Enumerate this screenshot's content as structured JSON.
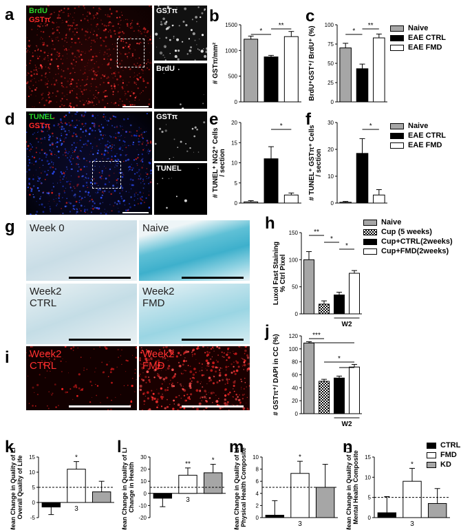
{
  "panels": {
    "a": {
      "letter": "a",
      "stain1": "BrdU",
      "stain2": "GSTπ",
      "inset_top": "GSTπ",
      "inset_bottom": "BrdU"
    },
    "b": {
      "letter": "b"
    },
    "c": {
      "letter": "c"
    },
    "d": {
      "letter": "d",
      "stain1": "TUNEL",
      "stain2": "GSTπ",
      "inset_top": "GSTπ",
      "inset_bottom": "TUNEL"
    },
    "e": {
      "letter": "e"
    },
    "f": {
      "letter": "f"
    },
    "g": {
      "letter": "g",
      "labels": [
        "Week 0",
        "Naive",
        "Week2",
        "CTRL",
        "Week2",
        "FMD"
      ]
    },
    "h": {
      "letter": "h"
    },
    "i": {
      "letter": "i",
      "labels": [
        "Week2",
        "CTRL",
        "Week2",
        "FMD"
      ]
    },
    "j": {
      "letter": "j"
    },
    "k": {
      "letter": "k"
    },
    "l": {
      "letter": "l"
    },
    "m": {
      "letter": "m"
    },
    "n": {
      "letter": "n"
    }
  },
  "legends": {
    "abc": [
      "Naive",
      "EAE CTRL",
      "EAE FMD"
    ],
    "ef": [
      "Naive",
      "EAE CTRL",
      "EAE FMD"
    ],
    "hj": [
      "Naive",
      "Cup (5 weeks)",
      "Cup+CTRL(2weeks)",
      "Cup+FMD(2weeks)"
    ],
    "kn": [
      "CTRL",
      "FMD",
      "KD"
    ]
  },
  "colors": {
    "gray": "#a6a6a6",
    "black": "#000000",
    "white": "#ffffff",
    "red_stain": "#ff2a2a",
    "green_stain": "#29d629",
    "blue_stain": "#2b4cff",
    "lfb_blue": "#57b6cf"
  },
  "chart_data": [
    {
      "id": "b",
      "type": "bar",
      "ylabel": "# GSTπ/mm²",
      "ylim": [
        0,
        1500
      ],
      "yticks": [
        "0",
        "500",
        "1000",
        "1500"
      ],
      "series": [
        {
          "name": "Naive",
          "value": 1220,
          "err": 60
        },
        {
          "name": "EAE CTRL",
          "value": 875,
          "err": 30
        },
        {
          "name": "EAE FMD",
          "value": 1270,
          "err": 100
        }
      ],
      "annotations": [
        "*",
        "**"
      ]
    },
    {
      "id": "c",
      "type": "bar",
      "ylabel": "BrdU⁺GST⁺/ BrdU⁺ (%)",
      "ylim": [
        0,
        100
      ],
      "yticks": [
        "0",
        "25",
        "50",
        "75",
        "100"
      ],
      "series": [
        {
          "name": "Naive",
          "value": 70,
          "err": 6
        },
        {
          "name": "EAE CTRL",
          "value": 43,
          "err": 6
        },
        {
          "name": "EAE FMD",
          "value": 83,
          "err": 5
        }
      ],
      "annotations": [
        "*",
        "**"
      ]
    },
    {
      "id": "e",
      "type": "bar",
      "ylabel": "# TUNEL⁺ NG2⁺ Cells / section",
      "ylim": [
        0,
        20
      ],
      "yticks": [
        "0",
        "5",
        "10",
        "15",
        "20"
      ],
      "series": [
        {
          "name": "Naive",
          "value": 0.3,
          "err": 0.3
        },
        {
          "name": "EAE CTRL",
          "value": 11,
          "err": 3
        },
        {
          "name": "EAE FMD",
          "value": 2,
          "err": 0.5
        }
      ],
      "annotations": [
        "*"
      ]
    },
    {
      "id": "f",
      "type": "bar",
      "ylabel": "# TUNEL⁺ GSTπ⁺ Cells / section",
      "ylim": [
        0,
        30
      ],
      "yticks": [
        "0",
        "10",
        "20",
        "30"
      ],
      "series": [
        {
          "name": "Naive",
          "value": 0.3,
          "err": 0.3
        },
        {
          "name": "EAE CTRL",
          "value": 18.5,
          "err": 5.5
        },
        {
          "name": "EAE FMD",
          "value": 3,
          "err": 2
        }
      ],
      "annotations": [
        "*"
      ]
    },
    {
      "id": "h",
      "type": "bar",
      "ylabel": "Luxol Fast Staining % Ctrl Pixel",
      "ylim": [
        0,
        150
      ],
      "yticks": [
        "0",
        "50",
        "100",
        "150"
      ],
      "series": [
        {
          "name": "Naive",
          "value": 100,
          "err": 15
        },
        {
          "name": "Cup (5 weeks)",
          "value": 18,
          "err": 6
        },
        {
          "name": "Cup+CTRL(2weeks)",
          "value": 35,
          "err": 5
        },
        {
          "name": "Cup+FMD(2weeks)",
          "value": 75,
          "err": 5
        }
      ],
      "xlabel": "W2",
      "annotations": [
        "**",
        "*",
        "*"
      ]
    },
    {
      "id": "j",
      "type": "bar",
      "ylabel": "# GSTπ⁺/ DAPI in CC (%)",
      "ylim": [
        0,
        120
      ],
      "yticks": [
        "0",
        "20",
        "40",
        "60",
        "80",
        "100",
        "120"
      ],
      "series": [
        {
          "name": "Naive",
          "value": 109,
          "err": 2
        },
        {
          "name": "Cup (5 weeks)",
          "value": 50,
          "err": 3
        },
        {
          "name": "Cup+CTRL(2weeks)",
          "value": 55,
          "err": 3
        },
        {
          "name": "Cup+FMD(2weeks)",
          "value": 72,
          "err": 4
        }
      ],
      "xlabel": "W2",
      "annotations": [
        "***",
        "*"
      ]
    },
    {
      "id": "k",
      "type": "bar",
      "ylabel": "Mean Change in Quality of Life Overall Quality of Life",
      "ylim": [
        -5,
        15
      ],
      "yticks": [
        "-5",
        "0",
        "5",
        "10",
        "15"
      ],
      "xlabel": "3",
      "refline": 5,
      "series": [
        {
          "name": "CTRL",
          "value": -1.5,
          "err": 2.5
        },
        {
          "name": "FMD",
          "value": 11,
          "err": 2.5
        },
        {
          "name": "KD",
          "value": 3.5,
          "err": 3.5
        }
      ],
      "annotations": [
        "*"
      ]
    },
    {
      "id": "l",
      "type": "bar",
      "ylabel": "Mean Change in Quality of Life Change in Health",
      "ylim": [
        -20,
        30
      ],
      "yticks": [
        "-20",
        "-10",
        "0",
        "10",
        "20",
        "30"
      ],
      "xlabel": "3",
      "refline": 5,
      "series": [
        {
          "name": "CTRL",
          "value": -4,
          "err": 7
        },
        {
          "name": "FMD",
          "value": 15,
          "err": 6
        },
        {
          "name": "KD",
          "value": 17,
          "err": 7
        }
      ],
      "annotations": [
        "**",
        "*"
      ]
    },
    {
      "id": "m",
      "type": "bar",
      "ylabel": "Mean Change in Quality of Life Physical Health Composite",
      "ylim": [
        0,
        10
      ],
      "yticks": [
        "0",
        "2",
        "4",
        "6",
        "8",
        "10"
      ],
      "xlabel": "3",
      "refline": 5,
      "series": [
        {
          "name": "CTRL",
          "value": 0.4,
          "err": 2.4
        },
        {
          "name": "FMD",
          "value": 7.3,
          "err": 2
        },
        {
          "name": "KD",
          "value": 5,
          "err": 3.8
        }
      ],
      "annotations": [
        "*"
      ]
    },
    {
      "id": "n",
      "type": "bar",
      "ylabel": "Mean Change in Quality of Life Mental Health Composite",
      "ylim": [
        0,
        15
      ],
      "yticks": [
        "0",
        "5",
        "10",
        "15"
      ],
      "xlabel": "3",
      "refline": 5,
      "series": [
        {
          "name": "CTRL",
          "value": 1.2,
          "err": 4
        },
        {
          "name": "FMD",
          "value": 9,
          "err": 3.2
        },
        {
          "name": "KD",
          "value": 3.5,
          "err": 3.7
        }
      ],
      "annotations": [
        "*"
      ]
    }
  ]
}
